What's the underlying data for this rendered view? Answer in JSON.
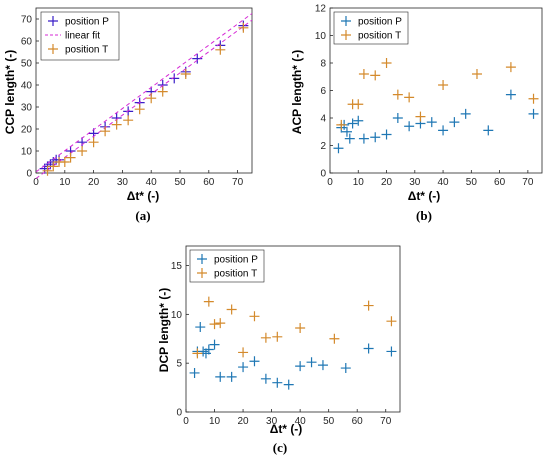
{
  "colors": {
    "position_p_a": "#3a1ec8",
    "position_p": "#1f77b4",
    "position_t": "#d48a2c",
    "linear_fit": "#d62ad6"
  },
  "chart_data": [
    {
      "panel": "(a)",
      "type": "scatter",
      "xlabel": "Δt* (-)",
      "ylabel": "CCP length* (-)",
      "xlim": [
        0,
        75
      ],
      "ylim": [
        0,
        75
      ],
      "xticks": [
        0,
        10,
        20,
        30,
        40,
        50,
        60,
        70
      ],
      "yticks": [
        0,
        10,
        20,
        30,
        40,
        50,
        60,
        70
      ],
      "legend_position": "top-left",
      "series": [
        {
          "name": "position P",
          "x": [
            3,
            4,
            5,
            6,
            7,
            8,
            12,
            16,
            20,
            24,
            28,
            32,
            36,
            40,
            44,
            48,
            52,
            56,
            64,
            72
          ],
          "y": [
            2,
            3,
            4,
            5,
            6,
            6,
            10,
            14,
            18,
            21,
            25,
            28,
            32,
            37,
            40,
            43,
            46,
            52,
            58,
            67
          ]
        },
        {
          "name": "linear fit",
          "style": "dashed",
          "x": [
            0,
            75
          ],
          "y": [
            -1,
            71
          ]
        },
        {
          "name": "position T",
          "x": [
            4,
            6,
            8,
            10,
            12,
            16,
            20,
            24,
            28,
            32,
            36,
            40,
            44,
            52,
            64,
            72
          ],
          "y": [
            1,
            3,
            5,
            5,
            7,
            10,
            14,
            19,
            22,
            24,
            29,
            34,
            37,
            45,
            56,
            66
          ]
        }
      ]
    },
    {
      "panel": "(b)",
      "type": "scatter",
      "xlabel": "Δt* (-)",
      "ylabel": "ACP length* (-)",
      "xlim": [
        0,
        75
      ],
      "ylim": [
        0,
        12
      ],
      "xticks": [
        0,
        10,
        20,
        30,
        40,
        50,
        60,
        70
      ],
      "yticks": [
        0,
        2,
        4,
        6,
        8,
        10,
        12
      ],
      "legend_position": "top-left",
      "series": [
        {
          "name": "position P",
          "x": [
            3,
            4,
            5,
            6,
            7,
            8,
            10,
            12,
            16,
            20,
            24,
            28,
            32,
            36,
            40,
            44,
            48,
            56,
            64,
            72
          ],
          "y": [
            1.8,
            3.3,
            3.5,
            3.0,
            2.5,
            3.6,
            3.8,
            2.5,
            2.6,
            2.8,
            4.0,
            3.4,
            3.6,
            3.7,
            3.1,
            3.7,
            4.3,
            3.1,
            5.7,
            4.3
          ]
        },
        {
          "name": "position T",
          "x": [
            4,
            8,
            10,
            12,
            16,
            20,
            24,
            28,
            32,
            40,
            52,
            64,
            72
          ],
          "y": [
            3.5,
            5.0,
            5.0,
            7.2,
            7.1,
            8.0,
            5.7,
            5.5,
            4.1,
            6.4,
            7.2,
            7.7,
            5.4
          ]
        }
      ]
    },
    {
      "panel": "(c)",
      "type": "scatter",
      "xlabel": "Δt* (-)",
      "ylabel": "DCP length* (-)",
      "xlim": [
        0,
        75
      ],
      "ylim": [
        0,
        17
      ],
      "xticks": [
        0,
        10,
        20,
        30,
        40,
        50,
        60,
        70
      ],
      "yticks": [
        0,
        5,
        10,
        15
      ],
      "legend_position": "top-left",
      "series": [
        {
          "name": "position P",
          "x": [
            3,
            4,
            5,
            6,
            7,
            8,
            10,
            12,
            16,
            20,
            24,
            28,
            32,
            36,
            40,
            44,
            48,
            56,
            64,
            72
          ],
          "y": [
            4.0,
            6.2,
            8.7,
            6.2,
            6.0,
            6.4,
            6.9,
            3.6,
            3.6,
            4.6,
            5.2,
            3.4,
            3.0,
            2.8,
            4.7,
            5.1,
            4.8,
            4.5,
            6.5,
            6.2
          ]
        },
        {
          "name": "position T",
          "x": [
            4,
            8,
            10,
            12,
            16,
            20,
            24,
            28,
            32,
            40,
            52,
            64,
            72
          ],
          "y": [
            6.0,
            11.3,
            9.0,
            9.1,
            10.5,
            6.1,
            9.8,
            7.6,
            7.7,
            8.6,
            7.5,
            10.9,
            9.3
          ]
        }
      ]
    }
  ]
}
